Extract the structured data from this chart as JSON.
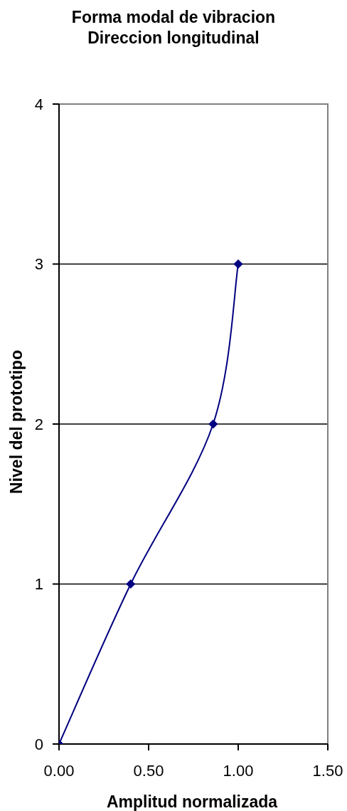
{
  "chart_data": {
    "type": "line",
    "title": "Forma modal de vibracion\nDireccion longitudinal",
    "xlabel": "Amplitud normalizada",
    "ylabel": "Nivel del prototipo",
    "x": [
      0,
      0.4,
      0.86,
      1.0
    ],
    "values": [
      0,
      1,
      2,
      3
    ],
    "color": "#000080",
    "xlim": [
      0,
      1.5
    ],
    "xticks": [
      {
        "value": 0,
        "label": "0.00"
      },
      {
        "value": 0.5,
        "label": "0.50"
      },
      {
        "value": 1,
        "label": "1.00"
      },
      {
        "value": 1.5,
        "label": "1.50"
      }
    ],
    "ylim": [
      0,
      4
    ],
    "yticks": [
      0,
      1,
      2,
      3,
      4
    ],
    "grid": "y",
    "marker": "diamond",
    "line_style": "solid"
  }
}
